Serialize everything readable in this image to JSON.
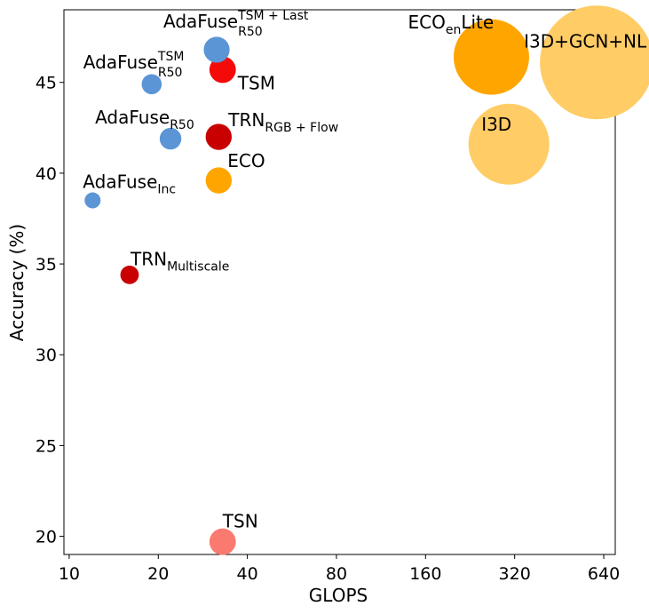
{
  "chart_data": {
    "type": "scatter",
    "title": "",
    "xlabel": "GLOPS",
    "ylabel": "Accuracy (%)",
    "x_scale": "log2",
    "xlim": [
      9.6,
      700
    ],
    "ylim": [
      19.0,
      49.0
    ],
    "x_ticks": [
      10,
      20,
      40,
      80,
      160,
      320,
      640
    ],
    "x_tick_labels": [
      "10",
      "20",
      "40",
      "80",
      "160",
      "320",
      "640"
    ],
    "y_ticks": [
      20,
      25,
      30,
      35,
      40,
      45
    ],
    "y_tick_labels": [
      "20",
      "25",
      "30",
      "35",
      "40",
      "45"
    ],
    "grid": false,
    "legend": "none",
    "size_encoding": "marker area scales with GLOPS",
    "points": [
      {
        "id": "adafuse-tsm-last-r50",
        "label": "AdaFuse",
        "sup": "TSM + Last",
        "sub": "R50",
        "x": 31.5,
        "y": 46.8,
        "color": "#5b95d6"
      },
      {
        "id": "tsm",
        "label": "TSM",
        "x": 33.0,
        "y": 45.7,
        "color": "#f50a0a"
      },
      {
        "id": "adafuse-tsm-r50",
        "label": "AdaFuse",
        "sup": "TSM",
        "sub": "R50",
        "x": 19.0,
        "y": 44.9,
        "color": "#5b95d6"
      },
      {
        "id": "adafuse-r50",
        "label": "AdaFuse",
        "sub": "R50",
        "x": 22.0,
        "y": 41.9,
        "color": "#5b95d6"
      },
      {
        "id": "trn-rgb-flow",
        "label": "TRN",
        "sub": "RGB + Flow",
        "x": 32.0,
        "y": 42.0,
        "color": "#c80000"
      },
      {
        "id": "eco",
        "label": "ECO",
        "x": 32.0,
        "y": 39.6,
        "color": "#ffa500"
      },
      {
        "id": "adafuse-inc",
        "label": "AdaFuse",
        "sub": "Inc",
        "x": 12.0,
        "y": 38.5,
        "color": "#5b95d6"
      },
      {
        "id": "trn-multiscale",
        "label": "TRN",
        "sub": "Multiscale",
        "x": 16.0,
        "y": 34.4,
        "color": "#c80000"
      },
      {
        "id": "eco-en-lite",
        "label": "ECO",
        "sub": "en",
        "suffix": "Lite",
        "x": 267.0,
        "y": 46.4,
        "color": "#ffa500"
      },
      {
        "id": "i3d-gcn-nl",
        "label": "I3D+GCN+NL",
        "x": 606.0,
        "y": 46.1,
        "color": "#ffcc66"
      },
      {
        "id": "i3d",
        "label": "I3D",
        "x": 306.0,
        "y": 41.6,
        "color": "#ffcc66"
      },
      {
        "id": "tsn",
        "label": "TSN",
        "x": 33.0,
        "y": 19.7,
        "color": "#fa7a70"
      }
    ]
  }
}
